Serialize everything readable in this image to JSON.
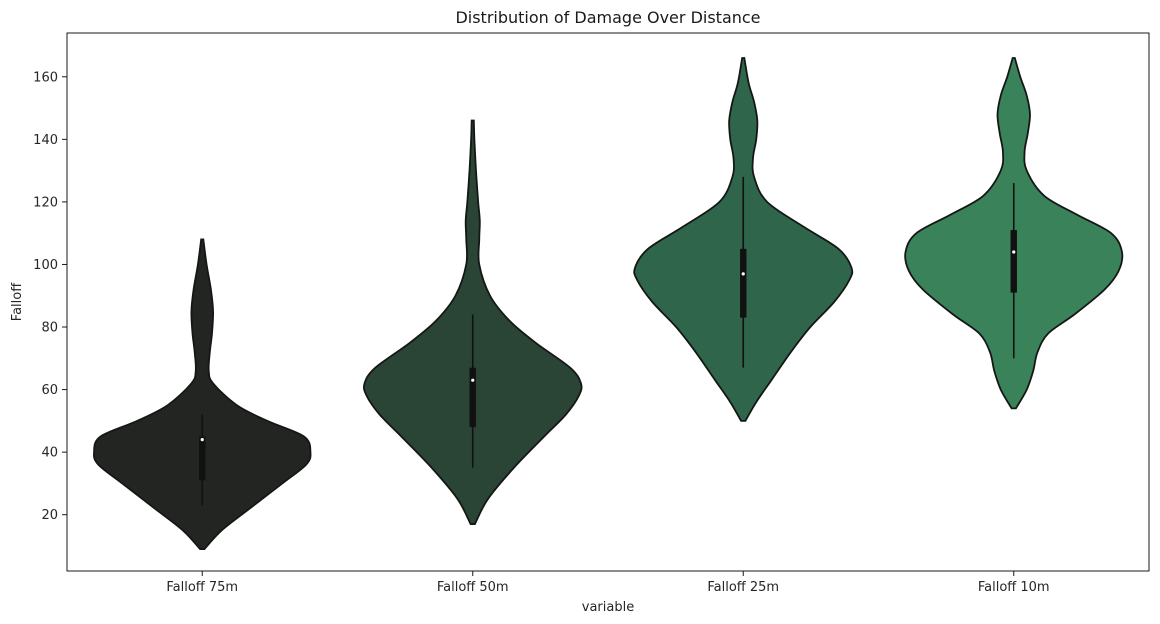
{
  "chart_data": {
    "type": "violin",
    "title": "Distribution of Damage Over Distance",
    "xlabel": "variable",
    "ylabel": "Falloff",
    "ylim": [
      2,
      174
    ],
    "yticks": [
      20,
      40,
      60,
      80,
      100,
      120,
      140,
      160
    ],
    "grid": false,
    "legend": "none",
    "categories": [
      "Falloff 75m",
      "Falloff 50m",
      "Falloff 25m",
      "Falloff 10m"
    ],
    "series": [
      {
        "category": "Falloff 75m",
        "color": "#232523",
        "kde_min": 9,
        "kde_max": 108,
        "box": {
          "whisker_low": 23,
          "q1": 31,
          "median": 44,
          "q3": 45,
          "whisker_high": 52
        },
        "density": [
          [
            9,
            0.02
          ],
          [
            15,
            0.18
          ],
          [
            22,
            0.44
          ],
          [
            30,
            0.74
          ],
          [
            36,
            0.96
          ],
          [
            40,
            1.0
          ],
          [
            45,
            0.94
          ],
          [
            50,
            0.6
          ],
          [
            55,
            0.32
          ],
          [
            62,
            0.1
          ],
          [
            66,
            0.06
          ],
          [
            72,
            0.07
          ],
          [
            78,
            0.09
          ],
          [
            85,
            0.1
          ],
          [
            92,
            0.08
          ],
          [
            100,
            0.04
          ],
          [
            108,
            0.01
          ]
        ]
      },
      {
        "category": "Falloff 50m",
        "color": "#2a4535",
        "kde_min": 17,
        "kde_max": 146,
        "box": {
          "whisker_low": 35,
          "q1": 48,
          "median": 63,
          "q3": 67,
          "whisker_high": 84
        },
        "density": [
          [
            17,
            0.02
          ],
          [
            25,
            0.14
          ],
          [
            35,
            0.38
          ],
          [
            45,
            0.66
          ],
          [
            52,
            0.86
          ],
          [
            58,
            0.98
          ],
          [
            62,
            1.0
          ],
          [
            67,
            0.9
          ],
          [
            75,
            0.58
          ],
          [
            82,
            0.34
          ],
          [
            90,
            0.16
          ],
          [
            100,
            0.06
          ],
          [
            108,
            0.06
          ],
          [
            114,
            0.065
          ],
          [
            120,
            0.05
          ],
          [
            130,
            0.03
          ],
          [
            140,
            0.015
          ],
          [
            146,
            0.01
          ]
        ]
      },
      {
        "category": "Falloff 25m",
        "color": "#2f654a",
        "kde_min": 50,
        "kde_max": 166,
        "box": {
          "whisker_low": 67,
          "q1": 83,
          "median": 97,
          "q3": 105,
          "whisker_high": 128
        },
        "density": [
          [
            50,
            0.02
          ],
          [
            56,
            0.12
          ],
          [
            63,
            0.26
          ],
          [
            72,
            0.44
          ],
          [
            80,
            0.62
          ],
          [
            88,
            0.84
          ],
          [
            95,
            0.98
          ],
          [
            99,
            1.0
          ],
          [
            105,
            0.88
          ],
          [
            112,
            0.56
          ],
          [
            120,
            0.22
          ],
          [
            128,
            0.1
          ],
          [
            134,
            0.09
          ],
          [
            140,
            0.12
          ],
          [
            146,
            0.13
          ],
          [
            152,
            0.1
          ],
          [
            158,
            0.05
          ],
          [
            166,
            0.01
          ]
        ]
      },
      {
        "category": "Falloff 10m",
        "color": "#3a8259",
        "kde_min": 54,
        "kde_max": 166,
        "box": {
          "whisker_low": 70,
          "q1": 91,
          "median": 104,
          "q3": 111,
          "whisker_high": 126
        },
        "density": [
          [
            54,
            0.02
          ],
          [
            60,
            0.12
          ],
          [
            66,
            0.18
          ],
          [
            72,
            0.22
          ],
          [
            78,
            0.32
          ],
          [
            84,
            0.56
          ],
          [
            92,
            0.84
          ],
          [
            98,
            0.97
          ],
          [
            104,
            1.0
          ],
          [
            110,
            0.9
          ],
          [
            116,
            0.58
          ],
          [
            122,
            0.28
          ],
          [
            130,
            0.12
          ],
          [
            136,
            0.1
          ],
          [
            142,
            0.13
          ],
          [
            148,
            0.15
          ],
          [
            154,
            0.12
          ],
          [
            160,
            0.06
          ],
          [
            166,
            0.01
          ]
        ]
      }
    ]
  }
}
